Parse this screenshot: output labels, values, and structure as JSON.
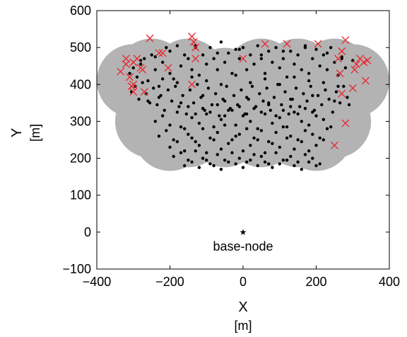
{
  "chart_data": {
    "type": "scatter",
    "title": "",
    "xlabel": "X",
    "xunit": "[m]",
    "ylabel": "Y",
    "yunit": "[m]",
    "xlim": [
      -400,
      400
    ],
    "ylim": [
      -100,
      600
    ],
    "xticks": [
      -400,
      -200,
      0,
      200,
      400
    ],
    "yticks": [
      -100,
      0,
      100,
      200,
      300,
      400,
      500,
      600
    ],
    "xtick_labels": [
      "−400",
      "−200",
      "0",
      "200",
      "400"
    ],
    "ytick_labels": [
      "−100",
      "0",
      "100",
      "200",
      "300",
      "400",
      "500",
      "600"
    ],
    "grid": false,
    "coverage_regions": {
      "color": "#b3b3b3",
      "radius": 100,
      "centers": [
        [
          -250,
          425
        ],
        [
          -150,
          425
        ],
        [
          -50,
          400
        ],
        [
          50,
          425
        ],
        [
          150,
          425
        ],
        [
          250,
          425
        ],
        [
          -300,
          410
        ],
        [
          300,
          410
        ],
        [
          -100,
          375
        ],
        [
          0,
          375
        ],
        [
          100,
          375
        ],
        [
          200,
          375
        ],
        [
          -150,
          275
        ],
        [
          -50,
          275
        ],
        [
          50,
          275
        ],
        [
          150,
          275
        ],
        [
          250,
          300
        ],
        [
          -250,
          300
        ],
        [
          -200,
          265
        ],
        [
          200,
          265
        ]
      ]
    },
    "base_node": {
      "x": 0,
      "y": 0,
      "label": "base-node"
    },
    "marker_colors": {
      "node": "#000000",
      "failed": "#e8242c"
    },
    "series": [
      {
        "marker": "dot",
        "x": [
          -310,
          -300,
          -290,
          -280,
          -270,
          -260,
          -250,
          -240,
          -230,
          -220,
          -210,
          -200,
          -190,
          -180,
          -170,
          -160,
          -150,
          -140,
          -130,
          -120,
          -110,
          -100,
          -90,
          -80,
          -70,
          -60,
          -50,
          -40,
          -30,
          -20,
          -10,
          0,
          10,
          20,
          30,
          40,
          50,
          60,
          70,
          80,
          90,
          100,
          110,
          120,
          130,
          140,
          150,
          160,
          170,
          180,
          190,
          200,
          210,
          220,
          230,
          240,
          250,
          260,
          270,
          280,
          -305,
          -295,
          -285,
          -275,
          -265,
          -255,
          -245,
          -235,
          -225,
          -215,
          -205,
          -195,
          -185,
          -175,
          -165,
          -155,
          -145,
          -135,
          -125,
          -115,
          -105,
          -95,
          -85,
          -75,
          -65,
          -55,
          -45,
          -35,
          -25,
          -15,
          -5,
          5,
          15,
          25,
          35,
          45,
          55,
          65,
          75,
          85,
          95,
          105,
          115,
          125,
          135,
          145,
          155,
          165,
          175,
          185,
          195,
          205,
          215,
          225,
          235,
          245,
          255,
          265,
          275,
          285,
          -240,
          -220,
          -200,
          -180,
          -160,
          -140,
          -120,
          -100,
          -80,
          -60,
          -40,
          -20,
          0,
          20,
          40,
          60,
          80,
          100,
          120,
          140,
          160,
          180,
          200,
          220,
          240,
          -230,
          -210,
          -190,
          -170,
          -150,
          -130,
          -110,
          -90,
          -70,
          -50,
          -30,
          -10,
          10,
          30,
          50,
          70,
          90,
          110,
          130,
          150,
          170,
          190,
          210,
          230,
          -200,
          -180,
          -160,
          -140,
          -120,
          -100,
          -80,
          -60,
          -40,
          -20,
          0,
          20,
          40,
          60,
          80,
          100,
          120,
          140,
          160,
          180,
          200,
          220,
          -190,
          -170,
          -150,
          -130,
          -110,
          -90,
          -70,
          -50,
          -30,
          -10,
          10,
          30,
          50,
          70,
          90,
          110,
          130,
          150,
          170,
          190,
          210,
          -160,
          -140,
          -120,
          -100,
          -80,
          -60,
          -40,
          -20,
          0,
          20,
          40,
          60,
          80,
          100,
          120,
          140,
          160,
          180,
          200,
          -150,
          -130,
          -110,
          -90,
          -70,
          -50,
          -30,
          -10,
          10,
          30,
          50,
          70,
          90,
          110,
          130,
          150,
          170,
          190,
          -220,
          -180,
          -140,
          -100,
          -60,
          -20,
          20,
          60,
          100,
          140,
          180,
          220,
          260,
          -260,
          -230,
          -170,
          -110,
          -50,
          10,
          70,
          130,
          190,
          250,
          290,
          -280,
          -240,
          -200,
          -130,
          -70,
          -10,
          50,
          110,
          170,
          230,
          270,
          300
        ],
        "y": [
          430,
          445,
          420,
          455,
          470,
          410,
          480,
          440,
          395,
          460,
          500,
          430,
          415,
          505,
          450,
          480,
          470,
          440,
          505,
          425,
          480,
          455,
          500,
          470,
          440,
          515,
          460,
          485,
          430,
          495,
          470,
          500,
          440,
          480,
          455,
          505,
          470,
          430,
          490,
          460,
          500,
          445,
          470,
          420,
          490,
          455,
          480,
          440,
          505,
          430,
          470,
          495,
          450,
          480,
          440,
          500,
          460,
          425,
          470,
          445,
          380,
          395,
          360,
          405,
          375,
          350,
          390,
          345,
          370,
          330,
          385,
          355,
          395,
          340,
          370,
          320,
          385,
          350,
          400,
          365,
          330,
          390,
          345,
          375,
          315,
          360,
          395,
          335,
          370,
          345,
          385,
          320,
          360,
          395,
          340,
          375,
          355,
          390,
          330,
          365,
          400,
          345,
          380,
          320,
          360,
          390,
          340,
          375,
          355,
          395,
          330,
          370,
          345,
          385,
          360,
          325,
          380,
          350,
          395,
          365,
          300,
          315,
          290,
          325,
          280,
          310,
          295,
          320,
          285,
          305,
          330,
          290,
          315,
          300,
          280,
          320,
          295,
          310,
          285,
          325,
          300,
          290,
          315,
          305,
          285,
          260,
          275,
          250,
          285,
          265,
          245,
          280,
          255,
          270,
          290,
          250,
          265,
          280,
          255,
          275,
          245,
          270,
          285,
          260,
          250,
          275,
          265,
          255,
          280,
          230,
          245,
          220,
          255,
          235,
          215,
          250,
          225,
          240,
          260,
          220,
          235,
          250,
          215,
          240,
          230,
          255,
          225,
          245,
          220,
          235,
          250,
          205,
          215,
          195,
          220,
          200,
          185,
          210,
          195,
          215,
          200,
          190,
          210,
          205,
          185,
          215,
          195,
          205,
          190,
          210,
          200,
          185,
          180,
          190,
          175,
          195,
          180,
          170,
          190,
          185,
          175,
          195,
          180,
          190,
          175,
          185,
          195,
          180,
          170,
          190,
          180,
          340,
          320,
          335,
          325,
          345,
          315,
          330,
          340,
          320,
          335,
          325,
          345,
          315,
          330,
          340,
          320,
          335,
          325,
          415,
          405,
          420,
          410,
          400,
          425,
          405,
          415,
          400,
          420,
          410,
          405,
          395,
          355,
          365,
          350,
          370,
          355,
          365,
          350,
          360,
          370,
          355,
          345,
          465,
          475,
          490,
          500,
          485,
          495,
          480,
          490,
          500,
          485,
          475,
          465
        ]
      },
      {
        "marker": "x",
        "x": [
          -335,
          -320,
          -310,
          -305,
          -300,
          -290,
          -275,
          -270,
          -255,
          -230,
          -220,
          -205,
          -140,
          -135,
          -130,
          -130,
          -140,
          0,
          60,
          120,
          205,
          260,
          265,
          270,
          280,
          300,
          305,
          310,
          320,
          330,
          335,
          340,
          250,
          280,
          270,
          -320,
          -300,
          -280,
          -300
        ],
        "y": [
          435,
          455,
          420,
          395,
          380,
          470,
          440,
          380,
          525,
          485,
          485,
          445,
          530,
          515,
          470,
          500,
          400,
          470,
          510,
          510,
          510,
          470,
          430,
          375,
          520,
          390,
          440,
          455,
          470,
          460,
          410,
          465,
          235,
          295,
          490,
          470,
          400,
          445,
          460
        ]
      }
    ]
  }
}
